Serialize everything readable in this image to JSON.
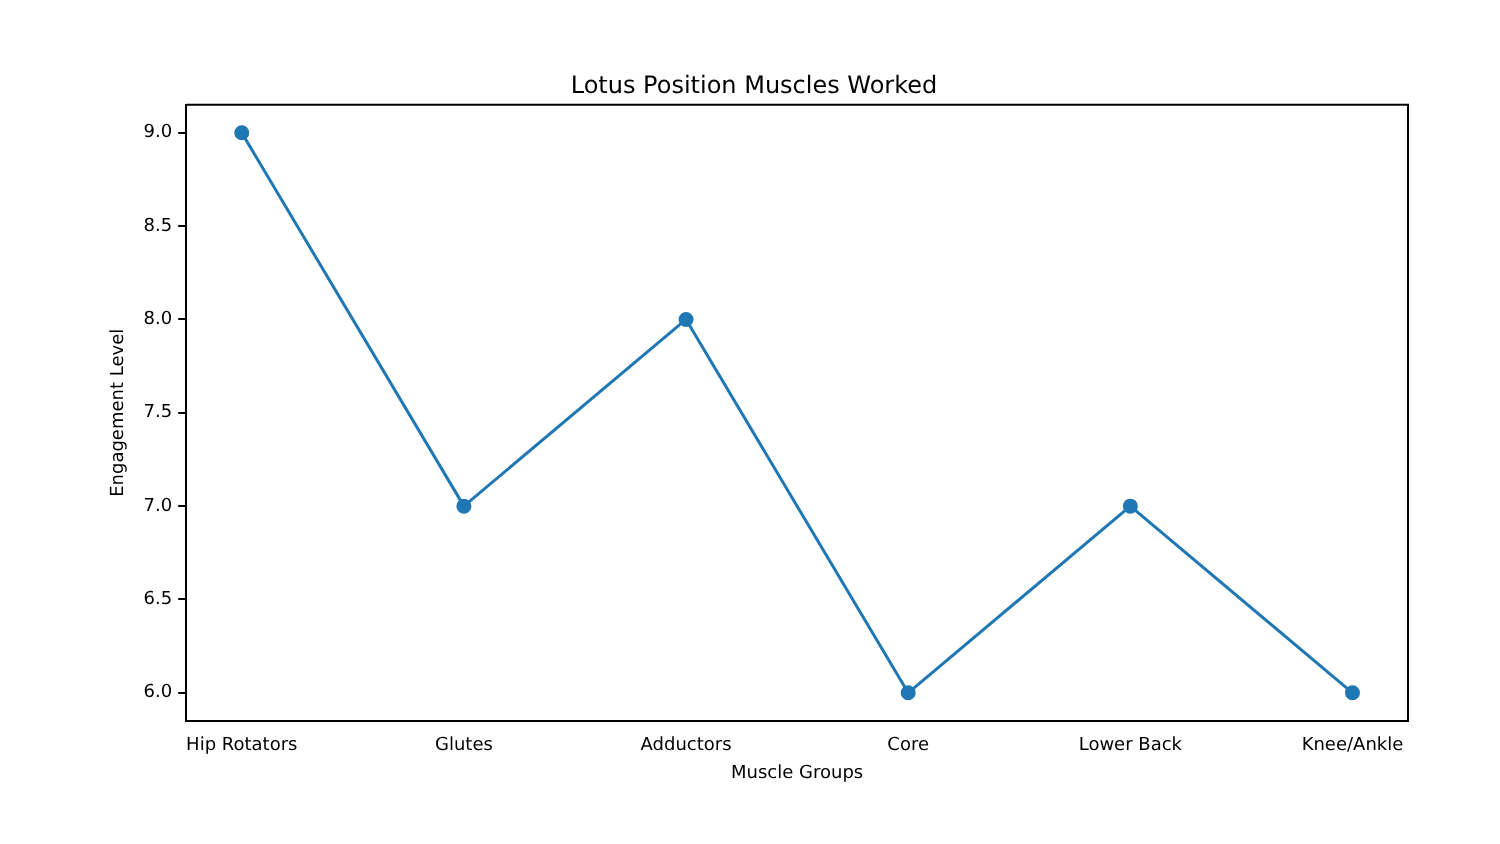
{
  "chart_data": {
    "type": "line",
    "title": "Lotus Position Muscles Worked",
    "xlabel": "Muscle Groups",
    "ylabel": "Engagement Level",
    "categories": [
      "Hip Rotators",
      "Glutes",
      "Adductors",
      "Core",
      "Lower Back",
      "Knee/Ankle"
    ],
    "series": [
      {
        "color": "#1f77b4",
        "values": [
          9,
          7,
          8,
          6,
          7,
          6
        ]
      }
    ],
    "ylim": [
      5.85,
      9.15
    ],
    "yticks": [
      {
        "value": 6,
        "label": "6.0"
      },
      {
        "value": 6.5,
        "label": "6.5"
      },
      {
        "value": 7,
        "label": "7.0"
      },
      {
        "value": 7.5,
        "label": "7.5"
      },
      {
        "value": 8,
        "label": "8.0"
      },
      {
        "value": 8.5,
        "label": "8.5"
      },
      {
        "value": 9,
        "label": "9.0"
      }
    ],
    "grid": false,
    "legend": false,
    "marker": "circle",
    "line_style": "solid"
  }
}
